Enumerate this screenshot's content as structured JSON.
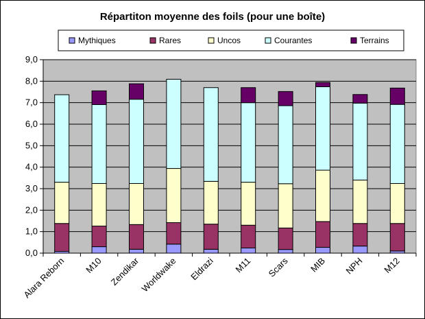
{
  "chart_data": {
    "type": "bar",
    "stacked": true,
    "title": "Répartiton moyenne des foils (pour une boîte)",
    "categories": [
      "Alara Reborn",
      "M10",
      "Zendikar",
      "Worldwake",
      "Eldrazi",
      "M11",
      "Scars",
      "MIB",
      "NPH",
      "M12"
    ],
    "series": [
      {
        "name": "Mythiques",
        "color": "#9999ff",
        "values": [
          0.08,
          0.3,
          0.18,
          0.42,
          0.18,
          0.24,
          0.17,
          0.27,
          0.33,
          0.1
        ]
      },
      {
        "name": "Rares",
        "color": "#993366",
        "values": [
          1.3,
          0.96,
          1.15,
          1.0,
          1.17,
          1.06,
          1.0,
          1.2,
          1.05,
          1.28
        ]
      },
      {
        "name": "Uncos",
        "color": "#ffffcc",
        "values": [
          1.92,
          1.98,
          1.91,
          2.52,
          1.99,
          2.0,
          2.06,
          2.39,
          2.02,
          1.86
        ]
      },
      {
        "name": "Courantes",
        "color": "#ccffff",
        "values": [
          4.07,
          3.67,
          3.92,
          4.15,
          4.36,
          3.7,
          3.63,
          3.88,
          3.58,
          3.68
        ]
      },
      {
        "name": "Terrains",
        "color": "#660066",
        "values": [
          0.0,
          0.64,
          0.72,
          0.0,
          0.0,
          0.7,
          0.66,
          0.2,
          0.4,
          0.76
        ]
      }
    ],
    "y_ticks": [
      "0,0",
      "1,0",
      "2,0",
      "3,0",
      "4,0",
      "5,0",
      "6,0",
      "7,0",
      "8,0",
      "9,0"
    ],
    "ylim": [
      0,
      9
    ],
    "grid": true,
    "plot_background": "#c0c0c0",
    "legend_position": "top"
  }
}
